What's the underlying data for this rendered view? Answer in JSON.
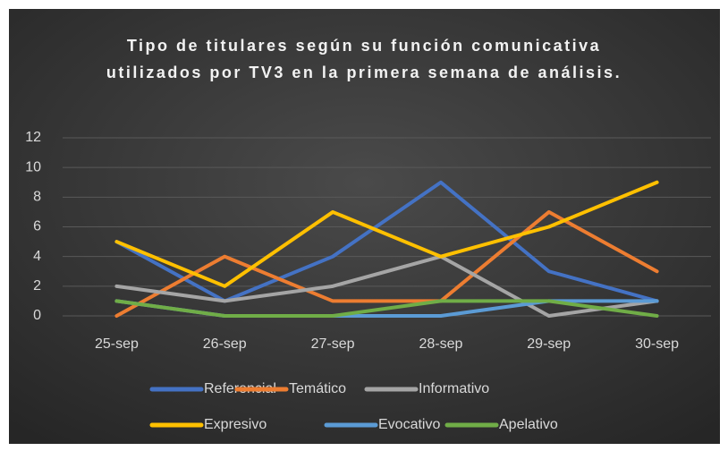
{
  "chart_data": {
    "type": "line",
    "title": "Tipo de titulares según su función comunicativa utilizados  por TV3 en la primera semana de análisis.",
    "categories": [
      "25-sep",
      "26-sep",
      "27-sep",
      "28-sep",
      "29-sep",
      "30-sep"
    ],
    "series": [
      {
        "name": "Referencial",
        "color": "#4472c4",
        "values": [
          5,
          1,
          4,
          9,
          3,
          1
        ]
      },
      {
        "name": "Temático",
        "color": "#ed7d31",
        "values": [
          0,
          4,
          1,
          1,
          7,
          3
        ]
      },
      {
        "name": "Informativo",
        "color": "#a5a5a5",
        "values": [
          2,
          1,
          2,
          4,
          0,
          1
        ]
      },
      {
        "name": "Expresivo",
        "color": "#ffc000",
        "values": [
          5,
          2,
          7,
          4,
          6,
          9
        ]
      },
      {
        "name": "Evocativo",
        "color": "#5b9bd5",
        "values": [
          1,
          0,
          0,
          0,
          1,
          1
        ]
      },
      {
        "name": "Apelativo",
        "color": "#70ad47",
        "values": [
          1,
          0,
          0,
          1,
          1,
          0
        ]
      }
    ],
    "ylim": [
      0,
      12
    ],
    "yticks": [
      0,
      2,
      4,
      6,
      8,
      10,
      12
    ],
    "grid": true,
    "legend": "bottom"
  }
}
